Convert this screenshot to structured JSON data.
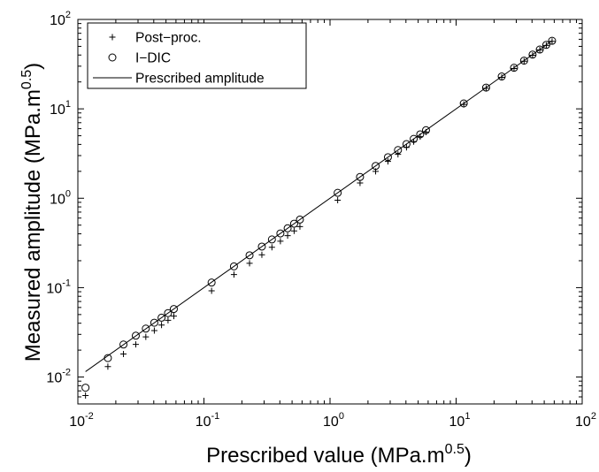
{
  "chart_data": {
    "type": "scatter",
    "xlabel": "Prescribed value (MPa.m",
    "xlabel_exp": "0.5",
    "xlabel_close": ")",
    "ylabel": "Measured amplitude (MPa.m",
    "ylabel_exp": "0.5",
    "ylabel_close": ")",
    "xscale": "log",
    "yscale": "log",
    "xlim": [
      0.01,
      100
    ],
    "ylim": [
      0.005,
      100
    ],
    "grid": false,
    "legend_position": "top-left",
    "x_ticks": [
      {
        "base": "10",
        "exp": "-2",
        "value": 0.01
      },
      {
        "base": "10",
        "exp": "-1",
        "value": 0.1
      },
      {
        "base": "10",
        "exp": "0",
        "value": 1
      },
      {
        "base": "10",
        "exp": "1",
        "value": 10
      },
      {
        "base": "10",
        "exp": "2",
        "value": 100
      }
    ],
    "y_ticks": [
      {
        "base": "10",
        "exp": "-2",
        "value": 0.01
      },
      {
        "base": "10",
        "exp": "-1",
        "value": 0.1
      },
      {
        "base": "10",
        "exp": "0",
        "value": 1
      },
      {
        "base": "10",
        "exp": "1",
        "value": 10
      },
      {
        "base": "10",
        "exp": "2",
        "value": 100
      }
    ],
    "x_values": [
      0.0115,
      0.0173,
      0.023,
      0.0288,
      0.0346,
      0.0404,
      0.0461,
      0.0519,
      0.0577,
      0.115,
      0.173,
      0.23,
      0.288,
      0.346,
      0.404,
      0.461,
      0.519,
      0.577,
      1.15,
      1.73,
      2.3,
      2.88,
      3.46,
      4.04,
      4.61,
      5.19,
      5.77,
      11.5,
      17.3,
      23.0,
      28.8,
      34.6,
      40.4,
      46.1,
      51.9,
      57.7
    ],
    "series": [
      {
        "name": "Post−proc.",
        "marker": "plus",
        "values": [
          0.0062,
          0.0131,
          0.0181,
          0.0232,
          0.0281,
          0.0331,
          0.0381,
          0.0431,
          0.0481,
          0.0922,
          0.14,
          0.187,
          0.233,
          0.283,
          0.331,
          0.381,
          0.431,
          0.481,
          0.95,
          1.48,
          2.0,
          2.58,
          3.1,
          3.7,
          4.3,
          4.88,
          5.5,
          11.2,
          17.0,
          22.5,
          28.3,
          34.1,
          39.8,
          45.6,
          51.3,
          57.0
        ]
      },
      {
        "name": "I−DIC",
        "marker": "circle",
        "values": [
          0.0076,
          0.0163,
          0.0231,
          0.029,
          0.0348,
          0.0405,
          0.0461,
          0.0519,
          0.0577,
          0.114,
          0.173,
          0.23,
          0.288,
          0.346,
          0.404,
          0.461,
          0.519,
          0.577,
          1.15,
          1.73,
          2.3,
          2.88,
          3.46,
          4.04,
          4.61,
          5.19,
          5.77,
          11.5,
          17.3,
          23.0,
          28.8,
          34.6,
          40.4,
          46.1,
          51.9,
          57.7
        ]
      },
      {
        "name": "Prescribed amplitude",
        "marker": "line",
        "line_range": [
          0.0115,
          57.7
        ]
      }
    ]
  }
}
